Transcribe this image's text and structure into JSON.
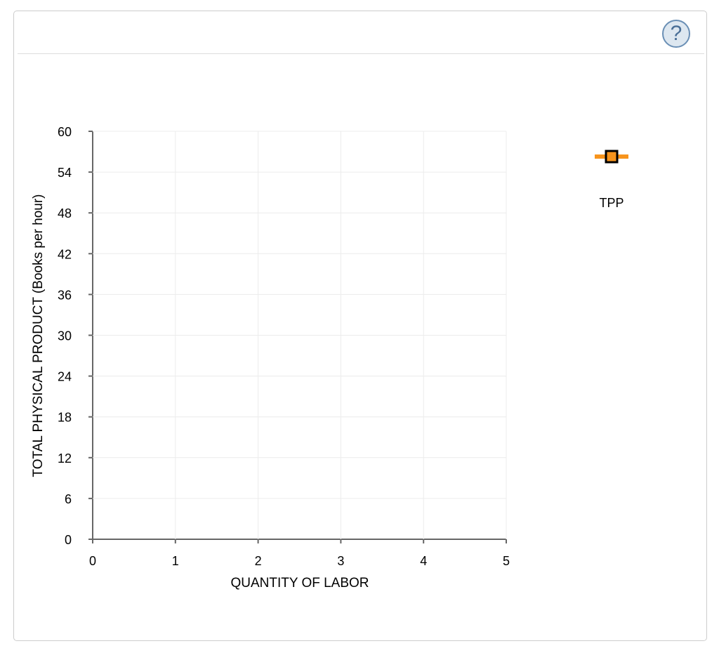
{
  "help_label": "?",
  "legend": {
    "label": "TPP",
    "line_color": "#f7941d",
    "marker_fill": "#f7941d",
    "marker_border": "#000000"
  },
  "chart_data": {
    "type": "line",
    "xlabel": "QUANTITY OF LABOR",
    "ylabel": "TOTAL PHYSICAL PRODUCT (Books per hour)",
    "xlim": [
      0,
      5
    ],
    "ylim": [
      0,
      60
    ],
    "xticks": [
      "0",
      "1",
      "2",
      "3",
      "4",
      "5"
    ],
    "yticks": [
      "0",
      "6",
      "12",
      "18",
      "24",
      "30",
      "36",
      "42",
      "48",
      "54",
      "60"
    ],
    "grid": true,
    "legend_position": "right",
    "series": [
      {
        "name": "TPP",
        "x": [],
        "y": []
      }
    ]
  }
}
